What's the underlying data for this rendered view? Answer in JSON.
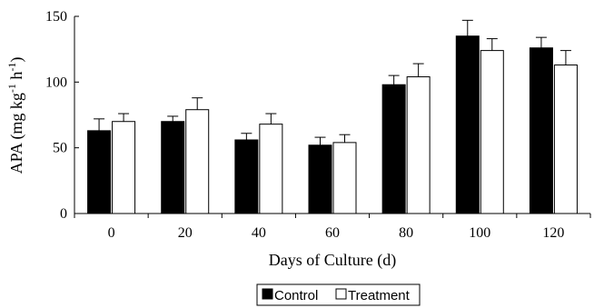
{
  "chart_data": {
    "type": "bar",
    "title": "",
    "xlabel": "Days of Culture (d)",
    "ylabel": {
      "prefix": "APA (mg kg",
      "exp1": "-1",
      "mid": " h",
      "exp2": "-1",
      "suffix": ")"
    },
    "categories": [
      "0",
      "20",
      "40",
      "60",
      "80",
      "100",
      "120"
    ],
    "ylim": [
      0,
      150
    ],
    "yticks": [
      0,
      50,
      100,
      150
    ],
    "grid": false,
    "legend_position": "bottom-center",
    "series": [
      {
        "name": "Control",
        "color": "#000000",
        "values": [
          63,
          70,
          56,
          52,
          98,
          135,
          126
        ],
        "errors": [
          9,
          4,
          5,
          6,
          7,
          12,
          8
        ]
      },
      {
        "name": "Treatment",
        "color": "#ffffff",
        "values": [
          70,
          79,
          68,
          54,
          104,
          124,
          113
        ],
        "errors": [
          6,
          9,
          8,
          6,
          10,
          9,
          11
        ]
      }
    ]
  }
}
